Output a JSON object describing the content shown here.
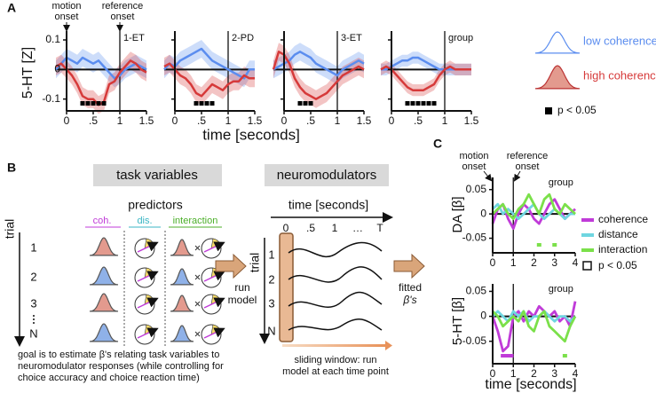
{
  "panel_labels": [
    "A",
    "B",
    "C"
  ],
  "panel_a": {
    "y_label": "5-HT [Z]",
    "x_label": "time [seconds]",
    "annotations": [
      "motion",
      "onset",
      "reference",
      "onset"
    ],
    "significance_label": "p < 0.05"
  },
  "panel_c": {
    "y_labels": [
      "DA [β]",
      "5-HT [β]"
    ],
    "x_label": "time [seconds]",
    "annotations": [
      "motion",
      "onset",
      "reference",
      "onset"
    ],
    "significance_label": "p < 0.05"
  },
  "panel_b": {
    "task_variables": "task variables",
    "predictors": "predictors",
    "predictor_names": [
      "coh.",
      "dis.",
      "interaction"
    ],
    "trial_label": "trial",
    "trials": [
      "1",
      "2",
      "3",
      "N"
    ],
    "run_model": [
      "run",
      "model"
    ],
    "neuromodulators": "neuromodulators",
    "time_label": "time [seconds]",
    "time_ticks": [
      "0",
      ".5",
      "1",
      "…",
      "T"
    ],
    "fitted": [
      "fitted",
      "β's"
    ],
    "sliding_window": [
      "sliding window: run",
      "model at each time point"
    ],
    "goal": [
      "goal is to estimate β's relating task variables to",
      "neuromodulator responses (while controlling for",
      "choice accuracy and choice reaction time)"
    ]
  },
  "chart_data": [
    {
      "type": "line",
      "title": "1-ET",
      "xlim": [
        -0.2,
        1.5
      ],
      "ylim": [
        -0.14,
        0.13
      ],
      "xticks": [
        0,
        {
          "value": 0.5,
          "label": ".5"
        },
        1,
        1.5
      ],
      "yticks": [
        0.1,
        0,
        -0.1
      ],
      "hline": 0,
      "vlines": [
        0,
        1
      ],
      "x": [
        -0.2,
        -0.1,
        0,
        0.1,
        0.2,
        0.3,
        0.4,
        0.5,
        0.6,
        0.7,
        0.8,
        0.9,
        1,
        1.1,
        1.2,
        1.3,
        1.4,
        1.5
      ],
      "series": [
        {
          "name": "low coherence",
          "color": "#5b8def",
          "values": [
            0,
            0.02,
            0.04,
            0.03,
            0.02,
            0.04,
            0.03,
            0.02,
            0.03,
            0.01,
            -0.01,
            -0.03,
            -0.02,
            0,
            0.01,
            0.02,
            0.01,
            0
          ],
          "error": [
            0.03,
            0.03,
            0.03,
            0.03,
            0.03,
            0.03,
            0.03,
            0.03,
            0.03,
            0.03,
            0.03,
            0.03,
            0.03,
            0.03,
            0.03,
            0.03,
            0.03,
            0.03
          ]
        },
        {
          "name": "high coherence",
          "color": "#d63a3a",
          "values": [
            0.01,
            0.02,
            0,
            -0.02,
            -0.05,
            -0.09,
            -0.1,
            -0.1,
            -0.12,
            -0.11,
            -0.05,
            -0.04,
            -0.01,
            0.01,
            0.03,
            0.02,
            0,
            -0.01
          ],
          "error": [
            0.03,
            0.03,
            0.03,
            0.03,
            0.03,
            0.03,
            0.03,
            0.03,
            0.03,
            0.03,
            0.03,
            0.03,
            0.03,
            0.03,
            0.03,
            0.03,
            0.03,
            0.03
          ]
        }
      ],
      "significant": [
        0.3,
        0.4,
        0.5,
        0.6,
        0.7
      ],
      "significant_color": "#000000"
    },
    {
      "type": "line",
      "title": "2-PD",
      "xlim": [
        -0.2,
        1.5
      ],
      "ylim": [
        -0.14,
        0.13
      ],
      "ytick_labels": false,
      "xticks": [
        0,
        {
          "value": 0.5,
          "label": ".5"
        },
        1,
        1.5
      ],
      "yticks": [
        0.1,
        0,
        -0.1
      ],
      "hline": 0,
      "vlines": [
        0,
        1
      ],
      "x": [
        -0.2,
        -0.1,
        0,
        0.1,
        0.2,
        0.3,
        0.4,
        0.5,
        0.6,
        0.7,
        0.8,
        0.9,
        1,
        1.1,
        1.2,
        1.3,
        1.4,
        1.5
      ],
      "series": [
        {
          "color": "#5b8def",
          "values": [
            0,
            0.02,
            0.01,
            0.03,
            0.04,
            0.05,
            0.06,
            0.07,
            0.05,
            0.03,
            0.02,
            0.01,
            0,
            -0.01,
            -0.02,
            -0.03,
            0,
            0
          ],
          "error": [
            0.03,
            0.03,
            0.03,
            0.03,
            0.03,
            0.03,
            0.03,
            0.03,
            0.03,
            0.03,
            0.03,
            0.03,
            0.03,
            0.03,
            0.03,
            0.03,
            0.03,
            0.03
          ]
        },
        {
          "color": "#d63a3a",
          "values": [
            0.01,
            0.02,
            0,
            -0.02,
            -0.03,
            -0.05,
            -0.08,
            -0.09,
            -0.07,
            -0.05,
            -0.06,
            -0.07,
            -0.05,
            -0.04,
            -0.04,
            -0.02,
            -0.03,
            -0.03
          ],
          "error": [
            0.03,
            0.03,
            0.03,
            0.03,
            0.03,
            0.03,
            0.03,
            0.03,
            0.03,
            0.03,
            0.03,
            0.03,
            0.03,
            0.03,
            0.03,
            0.03,
            0.03,
            0.03
          ]
        }
      ],
      "significant": [
        0.4,
        0.5,
        0.6,
        0.7
      ],
      "significant_color": "#000000"
    },
    {
      "type": "line",
      "title": "3-ET",
      "xlim": [
        -0.2,
        1.5
      ],
      "ylim": [
        -0.14,
        0.13
      ],
      "ytick_labels": false,
      "xticks": [
        0,
        {
          "value": 0.5,
          "label": ".5"
        },
        1,
        1.5
      ],
      "yticks": [
        0.1,
        0,
        -0.1
      ],
      "hline": 0,
      "vlines": [
        0,
        1
      ],
      "x": [
        -0.2,
        -0.1,
        0,
        0.1,
        0.2,
        0.3,
        0.4,
        0.5,
        0.6,
        0.7,
        0.8,
        0.9,
        1,
        1.1,
        1.2,
        1.3,
        1.4,
        1.5
      ],
      "series": [
        {
          "color": "#5b8def",
          "values": [
            0,
            0.01,
            0.02,
            0.03,
            0.05,
            0.06,
            0.05,
            0.04,
            0.02,
            0.01,
            0,
            -0.01,
            -0.02,
            0,
            0.01,
            0.02,
            0.03,
            0.02
          ],
          "error": [
            0.03,
            0.03,
            0.03,
            0.03,
            0.03,
            0.03,
            0.03,
            0.03,
            0.03,
            0.03,
            0.03,
            0.03,
            0.03,
            0.03,
            0.03,
            0.03,
            0.03,
            0.03
          ]
        },
        {
          "color": "#d63a3a",
          "values": [
            0,
            0.06,
            0.05,
            0.02,
            -0.03,
            -0.06,
            -0.08,
            -0.09,
            -0.1,
            -0.09,
            -0.08,
            -0.06,
            -0.04,
            -0.02,
            -0.01,
            0,
            0.01,
            0
          ],
          "error": [
            0.03,
            0.03,
            0.03,
            0.03,
            0.03,
            0.03,
            0.03,
            0.03,
            0.03,
            0.03,
            0.03,
            0.03,
            0.03,
            0.03,
            0.03,
            0.03,
            0.03,
            0.03
          ]
        }
      ],
      "significant": [
        0.3,
        0.4,
        0.5
      ],
      "significant_color": "#000000"
    },
    {
      "type": "line",
      "title": "group",
      "xlim": [
        -0.2,
        1.5
      ],
      "ylim": [
        -0.14,
        0.13
      ],
      "ytick_labels": false,
      "xticks": [
        0,
        {
          "value": 0.5,
          "label": ".5"
        },
        1,
        1.5
      ],
      "yticks": [
        0.1,
        0,
        -0.1
      ],
      "hline": 0,
      "vlines": [
        0,
        1
      ],
      "x": [
        -0.2,
        -0.1,
        0,
        0.1,
        0.2,
        0.3,
        0.4,
        0.5,
        0.6,
        0.7,
        0.8,
        0.9,
        1,
        1.1,
        1.2,
        1.3,
        1.4,
        1.5
      ],
      "series": [
        {
          "color": "#5b8def",
          "values": [
            0,
            0,
            0.01,
            0.02,
            0.03,
            0.03,
            0.04,
            0.04,
            0.03,
            0.02,
            0.01,
            0,
            0,
            0,
            0,
            0,
            0,
            0
          ],
          "error": [
            0.02,
            0.02,
            0.02,
            0.02,
            0.02,
            0.02,
            0.02,
            0.02,
            0.02,
            0.02,
            0.02,
            0.02,
            0.02,
            0.02,
            0.02,
            0.02,
            0.02,
            0.02
          ]
        },
        {
          "color": "#d63a3a",
          "values": [
            0,
            0.01,
            0,
            -0.02,
            -0.04,
            -0.06,
            -0.07,
            -0.07,
            -0.07,
            -0.06,
            -0.05,
            -0.02,
            0,
            0.01,
            0,
            0,
            0,
            0
          ],
          "error": [
            0.02,
            0.02,
            0.02,
            0.02,
            0.02,
            0.02,
            0.02,
            0.02,
            0.02,
            0.02,
            0.02,
            0.02,
            0.02,
            0.02,
            0.02,
            0.02,
            0.02,
            0.02
          ]
        }
      ],
      "significant": [
        0.3,
        0.4,
        0.5,
        0.6,
        0.7,
        0.8
      ],
      "significant_color": "#000000"
    },
    {
      "type": "line",
      "title": "group",
      "xlim": [
        0,
        4
      ],
      "ylim": [
        -0.08,
        0.075
      ],
      "xticks": [
        0,
        1,
        2,
        3,
        4
      ],
      "yticks": [
        0.05,
        0,
        -0.05
      ],
      "hline": 0,
      "vlines": [
        0,
        1
      ],
      "x": [
        0,
        0.25,
        0.5,
        0.75,
        1,
        1.25,
        1.5,
        1.75,
        2,
        2.25,
        2.5,
        2.75,
        3,
        3.25,
        3.5,
        3.75,
        4
      ],
      "series": [
        {
          "name": "coherence",
          "color": "#c03bd8",
          "values": [
            -0.02,
            0.01,
            0.02,
            -0.01,
            -0.03,
            0,
            0.02,
            0.01,
            -0.01,
            -0.02,
            0,
            0.02,
            0.03,
            0.01,
            -0.01,
            0,
            0.01
          ]
        },
        {
          "name": "distance",
          "color": "#6fd6e0",
          "values": [
            0.01,
            0.02,
            0,
            0.01,
            0,
            -0.01,
            0,
            0.01,
            0.02,
            0,
            -0.01,
            0,
            0.01,
            0,
            -0.01,
            0,
            0
          ]
        },
        {
          "name": "interaction",
          "color": "#7be04a",
          "values": [
            0,
            0.01,
            0.02,
            0,
            -0.01,
            0.01,
            0.02,
            0.04,
            0.02,
            0,
            0.03,
            0.04,
            0.01,
            0,
            0.02,
            0.01,
            0
          ],
          "significant": [
            2.25,
            3
          ]
        }
      ]
    },
    {
      "type": "line",
      "title": "group",
      "xlim": [
        0,
        4
      ],
      "ylim": [
        -0.095,
        0.065
      ],
      "xticks": [
        0,
        1,
        2,
        3,
        4
      ],
      "yticks": [
        0.05,
        0,
        -0.05
      ],
      "hline": 0,
      "vlines": [
        0,
        1
      ],
      "x": [
        0,
        0.25,
        0.5,
        0.75,
        1,
        1.25,
        1.5,
        1.75,
        2,
        2.25,
        2.5,
        2.75,
        3,
        3.25,
        3.5,
        3.75,
        4
      ],
      "series": [
        {
          "color": "#c03bd8",
          "values": [
            0,
            -0.03,
            -0.07,
            -0.06,
            0,
            0.01,
            -0.01,
            0.01,
            0,
            0.02,
            0.01,
            0,
            0.01,
            -0.01,
            0,
            -0.02,
            0.03
          ],
          "significant": [
            0.5,
            0.6,
            0.7,
            0.8,
            0.9
          ]
        },
        {
          "color": "#6fd6e0",
          "values": [
            0,
            0.01,
            0,
            -0.01,
            0.01,
            0,
            0.01,
            -0.01,
            0,
            0,
            0.01,
            0,
            -0.01,
            0,
            0,
            -0.01,
            0
          ]
        },
        {
          "color": "#7be04a",
          "values": [
            0.01,
            0,
            -0.02,
            -0.01,
            0,
            -0.01,
            0.01,
            -0.02,
            -0.03,
            0,
            0.01,
            -0.02,
            -0.03,
            -0.04,
            -0.05,
            -0.02,
            0
          ],
          "significant": [
            3.5
          ]
        }
      ]
    }
  ]
}
